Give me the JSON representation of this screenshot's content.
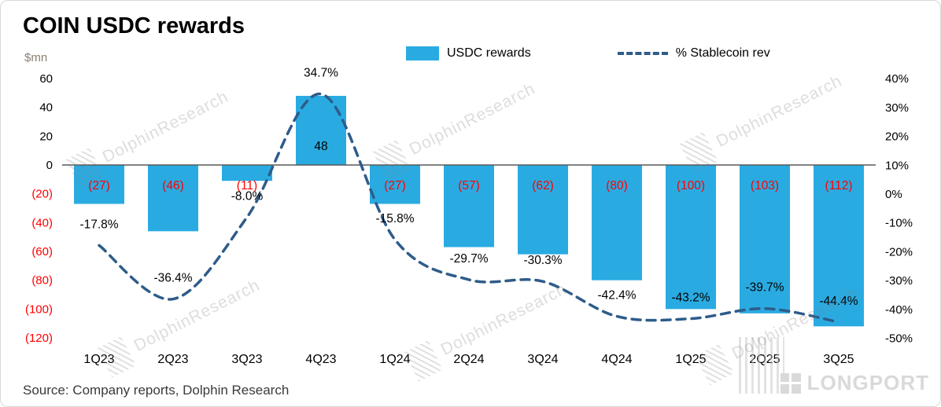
{
  "title": "COIN USDC rewards",
  "axis_unit_label": "$mn",
  "legend": {
    "bar_label": "USDC rewards",
    "line_label": "% Stablecoin rev"
  },
  "source": "Source:  Company reports, Dolphin Research",
  "watermark": "DolphinResearch",
  "logo": "LONGPORT",
  "colors": {
    "bar": "#29ABE2",
    "line": "#2E5C8A",
    "negative": "#FF0000",
    "axis_text": "#000000",
    "zero_line": "#595959"
  },
  "chart_data": {
    "type": "bar+line",
    "title": "COIN USDC rewards",
    "categories": [
      "1Q23",
      "2Q23",
      "3Q23",
      "4Q23",
      "1Q24",
      "2Q24",
      "3Q24",
      "4Q24",
      "1Q25",
      "2Q25",
      "3Q25"
    ],
    "series": [
      {
        "name": "USDC rewards",
        "type": "bar",
        "axis": "left",
        "values": [
          -27,
          -46,
          -11,
          48,
          -27,
          -57,
          -62,
          -80,
          -100,
          -103,
          -112
        ],
        "labels": [
          "(27)",
          "(46)",
          "(11)",
          "48",
          "(27)",
          "(57)",
          "(62)",
          "(80)",
          "(100)",
          "(103)",
          "(112)"
        ]
      },
      {
        "name": "% Stablecoin rev",
        "type": "dashed-line",
        "axis": "right",
        "values": [
          -17.8,
          -36.4,
          -8.0,
          34.7,
          -15.8,
          -29.7,
          -30.3,
          -42.4,
          -43.2,
          -39.7,
          -44.4
        ],
        "labels": [
          "-17.8%",
          "-36.4%",
          "-8.0%",
          "34.7%",
          "-15.8%",
          "-29.7%",
          "-30.3%",
          "-42.4%",
          "-43.2%",
          "-39.7%",
          "-44.4%"
        ]
      }
    ],
    "left_axis": {
      "unit": "$mn",
      "ticks": [
        "60",
        "40",
        "20",
        "0",
        "(20)",
        "(40)",
        "(60)",
        "(80)",
        "(100)",
        "(120)"
      ],
      "values": [
        60,
        40,
        20,
        0,
        -20,
        -40,
        -60,
        -80,
        -100,
        -120
      ],
      "ylim": [
        60,
        -120
      ]
    },
    "right_axis": {
      "ticks": [
        "40%",
        "30%",
        "20%",
        "10%",
        "0%",
        "-10%",
        "-20%",
        "-30%",
        "-40%",
        "-50%"
      ],
      "values": [
        40,
        30,
        20,
        10,
        0,
        -10,
        -20,
        -30,
        -40,
        -50
      ],
      "ylim": [
        40,
        -50
      ]
    },
    "grid": false,
    "legend_position": "top"
  }
}
